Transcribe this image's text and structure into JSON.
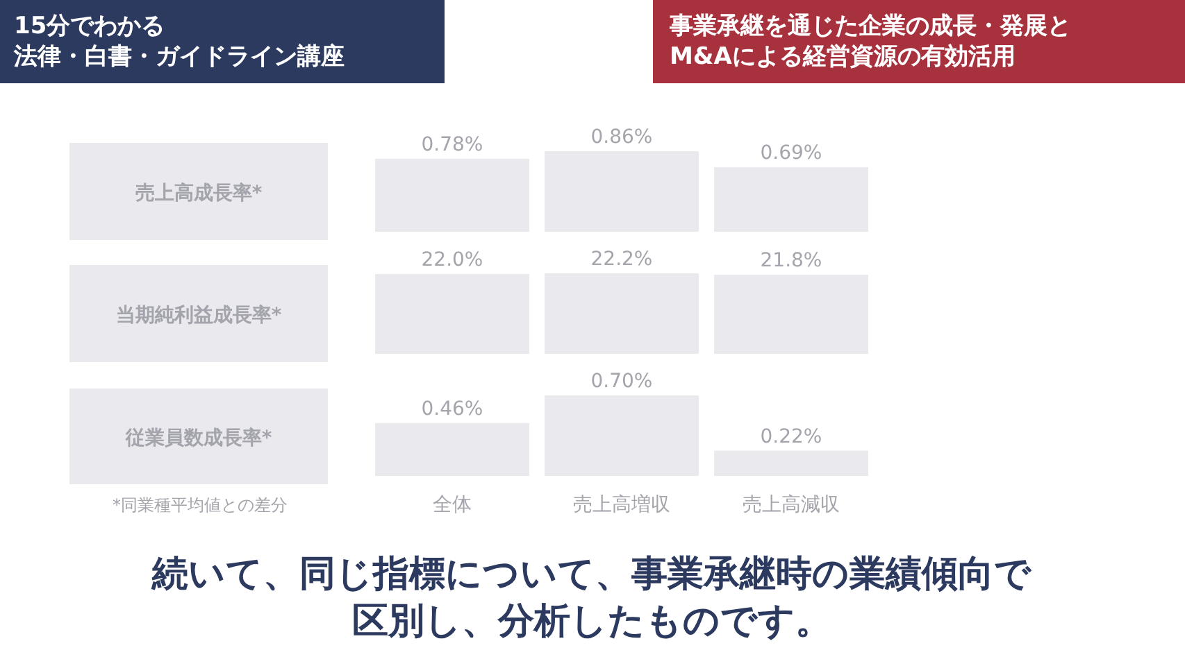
{
  "chart_data": [
    {
      "type": "bar",
      "title": "売上高成長率*",
      "values": [
        0.78,
        0.86,
        0.69
      ],
      "value_labels": [
        "0.78%",
        "0.86%",
        "0.69%"
      ],
      "color": "#e9e9ee",
      "annotations": [
        "15分でわかる法律・白書・ガイドライン講座",
        "事業承継を通じた企業の成長・発展とM&Aによる経営資源の有効活用"
      ]
    },
    {
      "type": "bar",
      "title": "当期純利益成長率*",
      "values": [
        22.0,
        22.2,
        21.8
      ],
      "value_labels": [
        "22.0%",
        "22.2%",
        "21.8%"
      ],
      "color": "#e9e9ee"
    },
    {
      "type": "bar",
      "title": "従業員数成長率*",
      "categories": [
        "全体",
        "売上高増収",
        "売上高減収"
      ],
      "values": [
        0.46,
        0.7,
        0.22
      ],
      "value_labels": [
        "0.46%",
        "0.70%",
        "0.22%"
      ],
      "color": "#e9e9ee",
      "annotations": [
        "*同業種平均値との差分",
        "続いて、同じ指標について、事業承継時の業績傾向で区別し、分析したものです。"
      ]
    }
  ]
}
